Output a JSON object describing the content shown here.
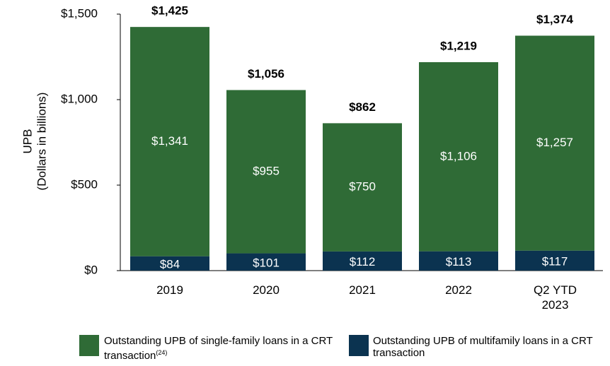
{
  "chart_data": {
    "type": "stacked_bar",
    "ylabel": [
      "UPB",
      "(Dollars in billions)"
    ],
    "categories": [
      "2019",
      "2020",
      "2021",
      "2022",
      "Q2 YTD 2023"
    ],
    "series": [
      {
        "name": "Outstanding UPB of single-family loans in a CRT transaction",
        "name_note": "(24)",
        "color": "#2f6b36",
        "values": [
          1341,
          955,
          750,
          1106,
          1257
        ],
        "value_labels": [
          "$1,341",
          "$955",
          "$750",
          "$1,106",
          "$1,257"
        ]
      },
      {
        "name": "Outstanding UPB of multifamily loans in a CRT transaction",
        "color": "#0b3350",
        "values": [
          84,
          101,
          112,
          113,
          117
        ],
        "value_labels": [
          "$84",
          "$101",
          "$112",
          "$113",
          "$117"
        ]
      }
    ],
    "totals": [
      1425,
      1056,
      862,
      1219,
      1374
    ],
    "total_labels": [
      "$1,425",
      "$1,056",
      "$862",
      "$1,219",
      "$1,374"
    ],
    "ylim": [
      0,
      1500
    ],
    "yticks": [
      {
        "value": 0,
        "label": "$0"
      },
      {
        "value": 500,
        "label": "$500"
      },
      {
        "value": 1000,
        "label": "$1,000"
      },
      {
        "value": 1500,
        "label": "$1,500"
      }
    ],
    "grid": false
  }
}
